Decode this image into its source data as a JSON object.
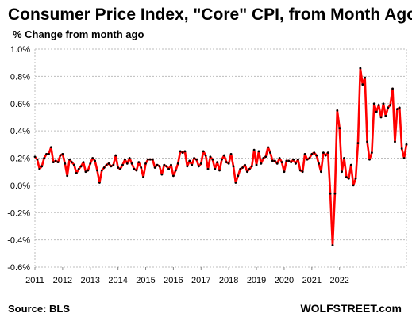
{
  "chart_data": {
    "type": "line",
    "title": "Consumer Price Index, \"Core\" CPI, from Month Ago",
    "subtitle": "% Change from month ago",
    "source": "Source: BLS",
    "brand": "WOLFSTREET.com",
    "ylim": [
      -0.6,
      1.0
    ],
    "y_ticks": [
      -0.6,
      -0.4,
      -0.2,
      0.0,
      0.2,
      0.4,
      0.6,
      0.8,
      1.0
    ],
    "y_tick_labels": [
      "-0.6%",
      "-0.4%",
      "-0.2%",
      "0.0%",
      "0.2%",
      "0.4%",
      "0.6%",
      "0.8%",
      "1.0%"
    ],
    "x_ticks": [
      "2011",
      "2012",
      "2013",
      "2014",
      "2015",
      "2016",
      "2017",
      "2018",
      "2019",
      "2020",
      "2021",
      "2022"
    ],
    "grid": true,
    "line_color": "#ff0000",
    "marker_color": "#000000",
    "start": "2011-01",
    "series": [
      {
        "values": [
          0.21,
          0.19,
          0.12,
          0.14,
          0.2,
          0.23,
          0.23,
          0.28,
          0.17,
          0.18,
          0.17,
          0.22,
          0.23,
          0.16,
          0.07,
          0.19,
          0.17,
          0.15,
          0.09,
          0.12,
          0.14,
          0.17,
          0.1,
          0.11,
          0.16,
          0.2,
          0.18,
          0.11,
          0.02,
          0.11,
          0.13,
          0.15,
          0.16,
          0.14,
          0.15,
          0.22,
          0.13,
          0.12,
          0.15,
          0.19,
          0.16,
          0.2,
          0.16,
          0.12,
          0.11,
          0.17,
          0.13,
          0.06,
          0.16,
          0.19,
          0.19,
          0.19,
          0.13,
          0.15,
          0.14,
          0.08,
          0.15,
          0.14,
          0.12,
          0.15,
          0.07,
          0.11,
          0.16,
          0.25,
          0.24,
          0.25,
          0.14,
          0.18,
          0.15,
          0.2,
          0.19,
          0.14,
          0.16,
          0.25,
          0.22,
          0.12,
          0.21,
          0.19,
          0.12,
          0.17,
          0.11,
          0.19,
          0.22,
          0.17,
          0.16,
          0.23,
          0.14,
          0.02,
          0.07,
          0.12,
          0.13,
          0.15,
          0.1,
          0.12,
          0.14,
          0.26,
          0.15,
          0.25,
          0.16,
          0.2,
          0.21,
          0.28,
          0.24,
          0.18,
          0.18,
          0.16,
          0.2,
          0.17,
          0.1,
          0.18,
          0.18,
          0.17,
          0.19,
          0.16,
          0.19,
          0.11,
          0.1,
          0.23,
          0.19,
          0.2,
          0.23,
          0.24,
          0.22,
          0.16,
          0.1,
          0.24,
          0.22,
          0.24,
          -0.06,
          -0.44,
          -0.06,
          0.55,
          0.42,
          0.1,
          0.2,
          0.06,
          0.05,
          0.15,
          0.0,
          0.05,
          0.31,
          0.86,
          0.74,
          0.79,
          0.32,
          0.19,
          0.24,
          0.6,
          0.54,
          0.59,
          0.5,
          0.6,
          0.51,
          0.57,
          0.59,
          0.71,
          0.32,
          0.56,
          0.57,
          0.27,
          0.2,
          0.3
        ]
      }
    ]
  }
}
